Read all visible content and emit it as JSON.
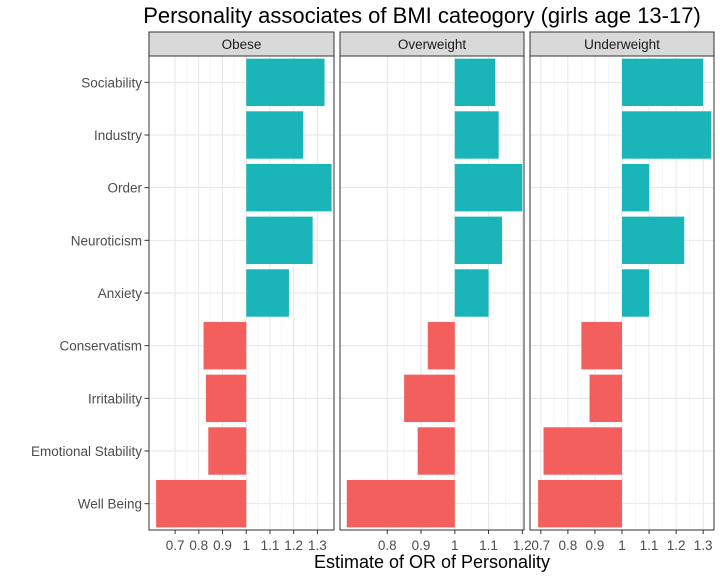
{
  "chart_data": {
    "type": "bar",
    "title": "Personality associates of BMI cateogory (girls age 13-17)",
    "xlabel": "Estimate of OR of Personality",
    "ylabel": "",
    "baseline": 1,
    "grid": true,
    "legend": "none",
    "colors": {
      "positive": "#19b5b8",
      "negative": "#f25f5c"
    },
    "categories": [
      "Sociability",
      "Industry",
      "Order",
      "Neuroticism",
      "Anxiety",
      "Conservatism",
      "Irritability",
      "Emotional Stability",
      "Well Being"
    ],
    "panels": [
      {
        "name": "Obese",
        "xlim": [
          0.59,
          1.37
        ],
        "ticks": [
          0.7,
          0.8,
          0.9,
          1,
          1.1,
          1.2,
          1.3
        ],
        "tick_labels": [
          "0.7",
          "0.8",
          "0.9",
          "1",
          "1.1",
          "1.2",
          "1.3"
        ],
        "values": [
          1.33,
          1.24,
          1.36,
          1.28,
          1.18,
          0.82,
          0.83,
          0.84,
          0.62
        ]
      },
      {
        "name": "Overweight",
        "xlim": [
          0.66,
          1.205
        ],
        "ticks": [
          0.8,
          0.9,
          1,
          1.1,
          1.2
        ],
        "tick_labels": [
          "0.8",
          "0.9",
          "1",
          "1.1",
          "1.2"
        ],
        "values": [
          1.12,
          1.13,
          1.2,
          1.14,
          1.1,
          0.92,
          0.85,
          0.89,
          0.68
        ]
      },
      {
        "name": "Underweight",
        "xlim": [
          0.66,
          1.34
        ],
        "ticks": [
          0.7,
          0.8,
          0.9,
          1,
          1.1,
          1.2,
          1.3
        ],
        "tick_labels": [
          "0.7",
          "0.8",
          "0.9",
          "1",
          "1.1",
          "1.2",
          "1.3"
        ],
        "values": [
          1.3,
          1.33,
          1.1,
          1.23,
          1.1,
          0.85,
          0.88,
          0.71,
          0.69
        ]
      }
    ]
  }
}
